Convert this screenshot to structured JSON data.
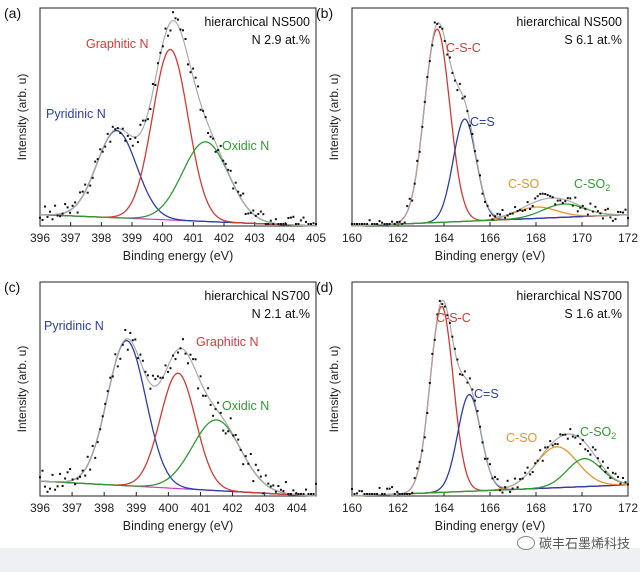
{
  "watermark": {
    "text": "碳丰石墨烯科技",
    "icon": "wechat-icon"
  },
  "chart_data": [
    {
      "type": "line",
      "label": "(a)",
      "title": "hierarchical NS500",
      "note": "N 2.9 at.%",
      "xlabel": "Binding energy (eV)",
      "ylabel": "Intensity (arb. u)",
      "xlim": [
        396,
        405
      ],
      "ylim": [
        0,
        1.15
      ],
      "xticks": [
        "396",
        "397",
        "398",
        "399",
        "400",
        "401",
        "402",
        "403",
        "404",
        "405"
      ],
      "background": {
        "x": [
          396,
          405
        ],
        "y": [
          0.06,
          0.0
        ]
      },
      "peaks": [
        {
          "name": "Pyridinic N",
          "center": 398.5,
          "height": 0.46,
          "width": 0.65,
          "color": "#2b3fa8"
        },
        {
          "name": "Graphitic N",
          "center": 400.25,
          "height": 0.9,
          "width": 0.58,
          "color": "#d23a36"
        },
        {
          "name": "Oxidic N",
          "center": 401.4,
          "height": 0.42,
          "width": 0.75,
          "color": "#2f9a33"
        }
      ],
      "noise": 0.05,
      "seed": 3
    },
    {
      "type": "line",
      "label": "(b)",
      "title": "hierarchical NS500",
      "note": "S 6.1 at.%",
      "xlabel": "Binding energy (eV)",
      "ylabel": "Intensity (arb. u)",
      "xlim": [
        160,
        172
      ],
      "ylim": [
        0,
        1.15
      ],
      "xticks": [
        "160",
        "162",
        "164",
        "166",
        "168",
        "170",
        "172"
      ],
      "background": {
        "x": [
          160,
          172
        ],
        "y": [
          0.0,
          0.06
        ]
      },
      "peaks": [
        {
          "name": "C-S-C",
          "center": 163.7,
          "height": 1.02,
          "width": 0.55,
          "color": "#d23a36"
        },
        {
          "name": "C=S",
          "center": 164.9,
          "height": 0.54,
          "width": 0.5,
          "color": "#2b3fa8"
        },
        {
          "name": "C-SO",
          "center": 168.0,
          "height": 0.06,
          "width": 0.9,
          "color": "#e8942a"
        },
        {
          "name": "C-SO2",
          "center": 169.2,
          "height": 0.07,
          "width": 0.9,
          "color": "#2f9a33"
        }
      ],
      "noise": 0.035,
      "seed": 7
    },
    {
      "type": "line",
      "label": "(c)",
      "title": "hierarchical NS700",
      "note": "N 2.1 at.%",
      "xlabel": "Binding energy (eV)",
      "ylabel": "Intensity (arb. u)",
      "xlim": [
        396,
        404.6
      ],
      "ylim": [
        0,
        1.15
      ],
      "xticks": [
        "396",
        "397",
        "398",
        "399",
        "400",
        "401",
        "402",
        "403",
        "404"
      ],
      "background": {
        "x": [
          396,
          404.6
        ],
        "y": [
          0.08,
          0.0
        ]
      },
      "peaks": [
        {
          "name": "Pyridinic N",
          "center": 398.7,
          "height": 0.78,
          "width": 0.6,
          "color": "#2b3fa8"
        },
        {
          "name": "Graphitic N",
          "center": 400.3,
          "height": 0.62,
          "width": 0.55,
          "color": "#d23a36"
        },
        {
          "name": "Oxidic N",
          "center": 401.5,
          "height": 0.38,
          "width": 0.75,
          "color": "#2f9a33"
        }
      ],
      "noise": 0.07,
      "seed": 11
    },
    {
      "type": "line",
      "label": "(d)",
      "title": "hierarchical NS700",
      "note": "S 1.6 at.%",
      "xlabel": "Binding energy (eV)",
      "ylabel": "Intensity (arb. u)",
      "xlim": [
        160,
        172
      ],
      "ylim": [
        0,
        1.15
      ],
      "xticks": [
        "160",
        "162",
        "164",
        "166",
        "168",
        "170",
        "172"
      ],
      "background": {
        "x": [
          160,
          172
        ],
        "y": [
          0.0,
          0.06
        ]
      },
      "peaks": [
        {
          "name": "C-S-C",
          "center": 163.9,
          "height": 1.0,
          "width": 0.5,
          "color": "#d23a36"
        },
        {
          "name": "C=S",
          "center": 165.1,
          "height": 0.52,
          "width": 0.5,
          "color": "#2b3fa8"
        },
        {
          "name": "C-SO",
          "center": 168.9,
          "height": 0.22,
          "width": 0.9,
          "color": "#e8942a"
        },
        {
          "name": "C-SO2",
          "center": 170.1,
          "height": 0.15,
          "width": 0.75,
          "color": "#2f9a33"
        }
      ],
      "noise": 0.04,
      "seed": 19
    }
  ]
}
